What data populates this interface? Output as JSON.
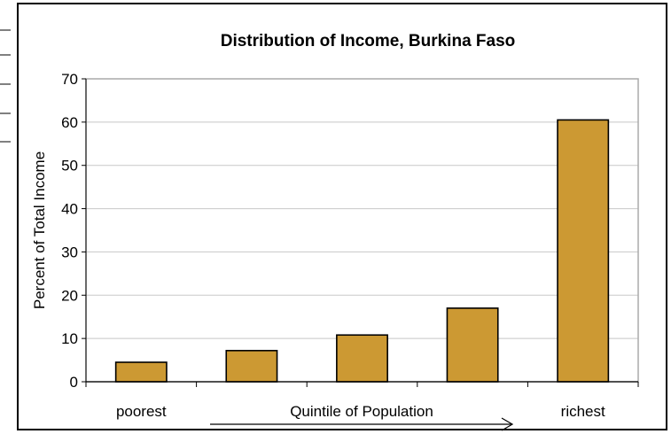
{
  "chart_data": {
    "type": "bar",
    "title": "Distribution of Income, Burkina Faso",
    "xlabel": "Quintile of Population",
    "ylabel": "Percent of Total Income",
    "categories": [
      "poorest",
      "",
      "",
      "",
      "richest"
    ],
    "values": [
      4.5,
      7.2,
      10.8,
      17.0,
      60.5
    ],
    "ylim": [
      0,
      70
    ],
    "yticks": [
      0,
      10,
      20,
      30,
      40,
      50,
      60,
      70
    ],
    "grid": true,
    "legend": "none",
    "bar_color": "#cc9933",
    "plot_border_color": "#aaaaaa",
    "grid_color": "#c8c8c8"
  }
}
